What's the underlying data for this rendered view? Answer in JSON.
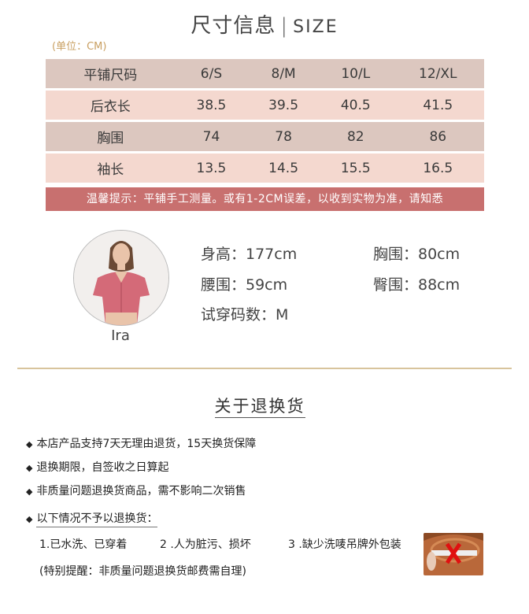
{
  "title": {
    "cn": "尺寸信息",
    "separator": "|",
    "en": "SIZE"
  },
  "unit": "(单位：CM)",
  "size_table": {
    "header": [
      "平铺尺码",
      "6/S",
      "8/M",
      "10/L",
      "12/XL"
    ],
    "rows": [
      [
        "后衣长",
        "38.5",
        "39.5",
        "40.5",
        "41.5"
      ],
      [
        "胸围",
        "74",
        "78",
        "82",
        "86"
      ],
      [
        "袖长",
        "13.5",
        "14.5",
        "15.5",
        "16.5"
      ]
    ]
  },
  "note": "温馨提示：平铺手工测量。或有1-2CM误差，以收到实物为准，请知悉",
  "model": {
    "name": "Ira",
    "height": "身高：177cm",
    "bust": "胸围：80cm",
    "waist": "腰围：59cm",
    "hips": "臀围：88cm",
    "size": "试穿码数：M"
  },
  "returns": {
    "title": "关于退换货",
    "bullets": [
      "本店产品支持7天无理由退货，15天换货保障",
      "退换期限，自签收之日算起",
      "非质量问题退换货商品，需不影响二次销售",
      "以下情况不予以退换货："
    ],
    "conditions": [
      "1.已水洗、已穿着",
      "2 .人为脏污、损坏",
      "3 .缺少洗唛吊牌外包装"
    ],
    "reminder": "(特别提醒：非质量问题退换货邮费需自理)"
  },
  "colors": {
    "accent": "#c8706f",
    "header_row": "#dcc7bf",
    "light_row": "#f4d8cf",
    "gold": "#c9a062"
  }
}
